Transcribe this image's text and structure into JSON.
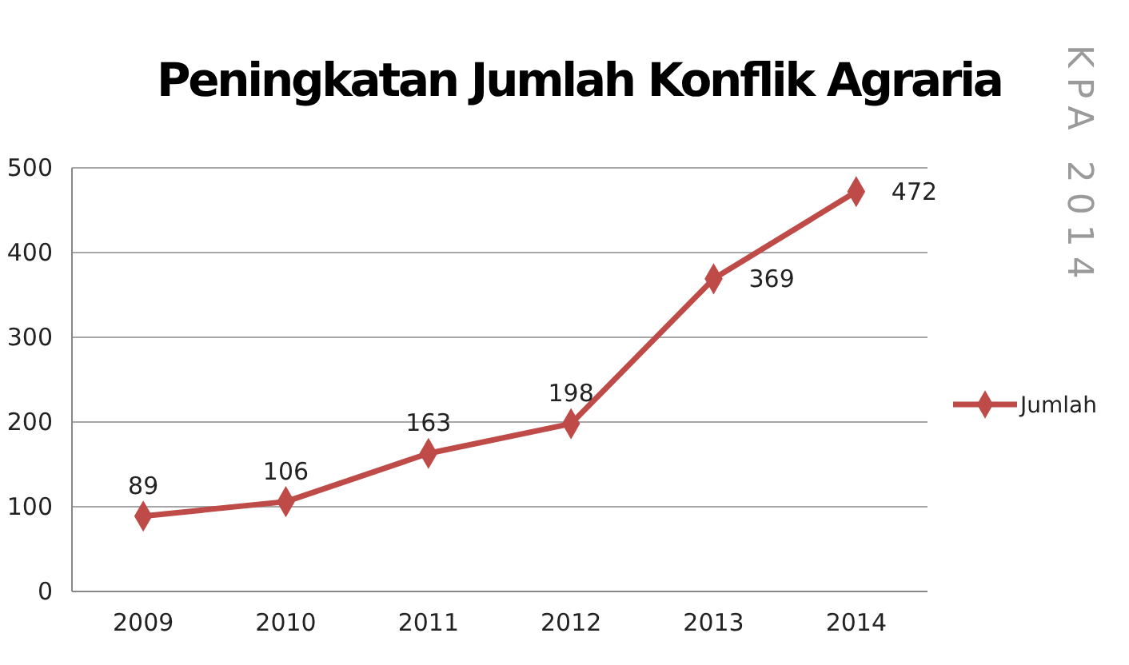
{
  "chart_data": {
    "type": "line",
    "title": "Peningkatan Jumlah Konflik Agraria",
    "categories": [
      "2009",
      "2010",
      "2011",
      "2012",
      "2013",
      "2014"
    ],
    "series": [
      {
        "name": "Jumlah",
        "color": "#be4b48",
        "values": [
          89,
          106,
          163,
          198,
          369,
          472
        ]
      }
    ],
    "ylim": [
      0,
      500
    ],
    "yticks": [
      0,
      100,
      200,
      300,
      400,
      500
    ],
    "grid": "y",
    "legend": "right",
    "marker": "diamond",
    "line_style": "solid",
    "data_labels": true,
    "annotations": [
      "KPA 2014"
    ]
  }
}
